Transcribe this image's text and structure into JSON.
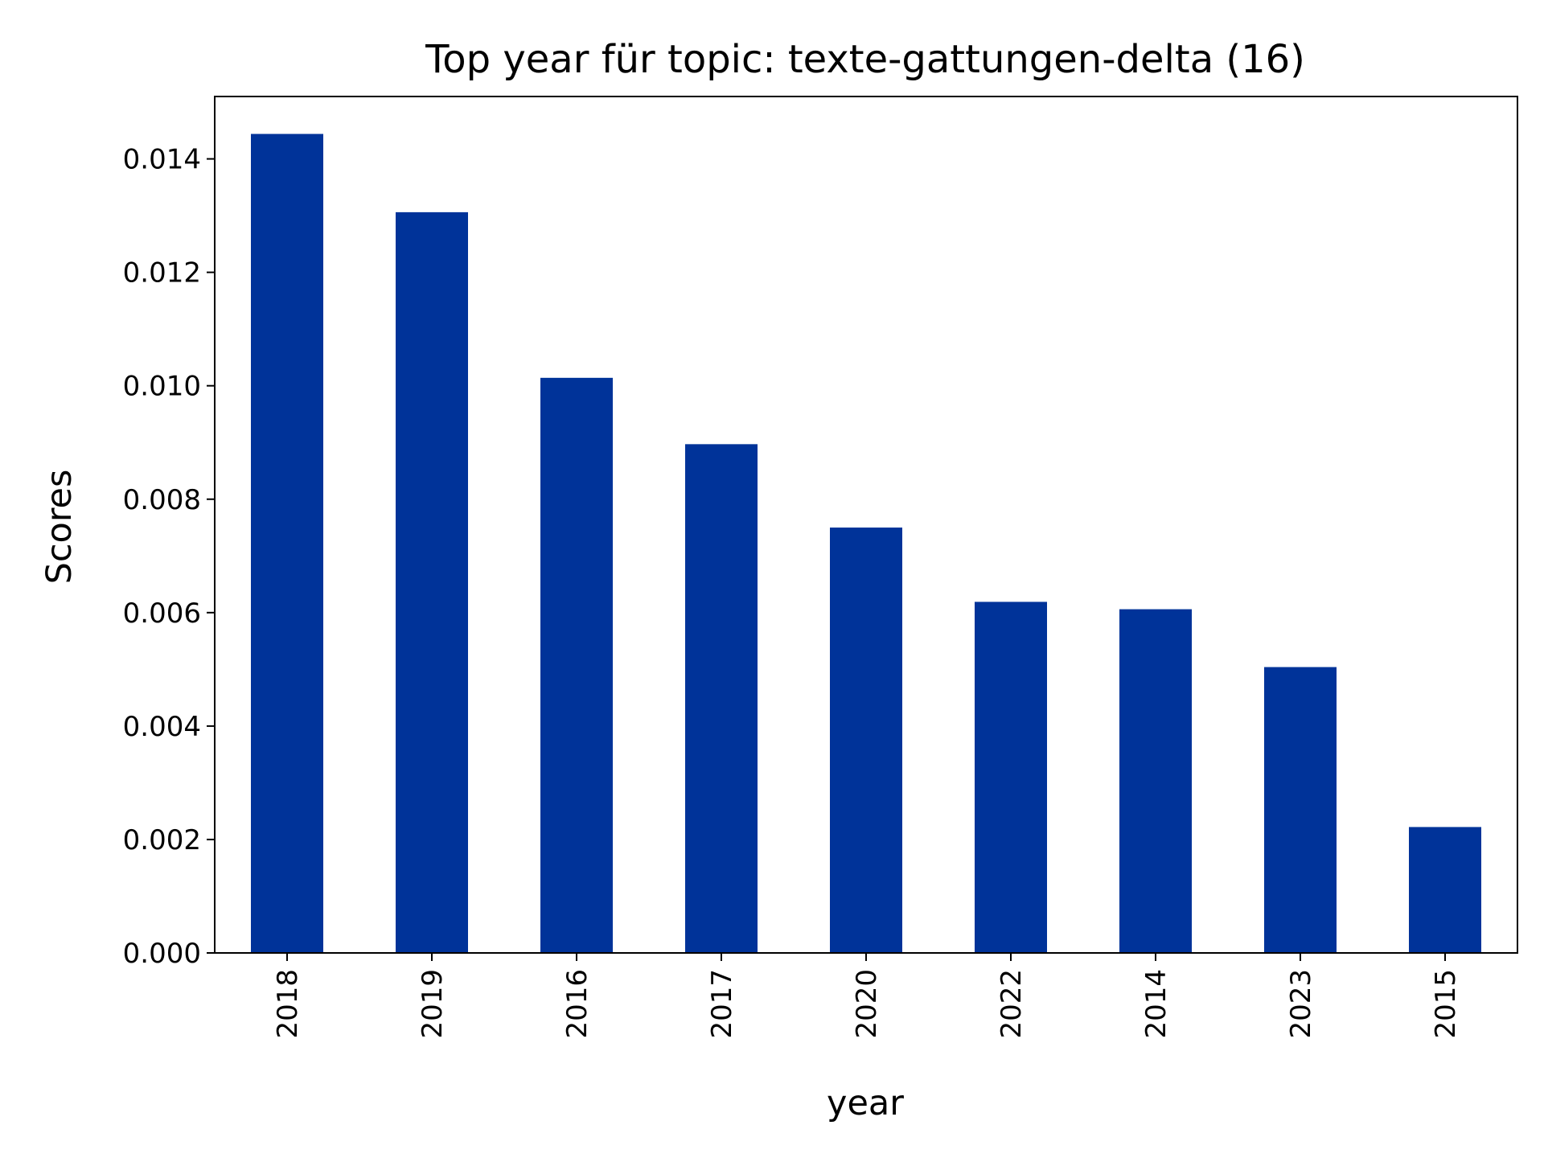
{
  "chart_data": {
    "type": "bar",
    "title": "Top year für topic: texte-gattungen-delta (16)",
    "xlabel": "year",
    "ylabel": "Scores",
    "categories": [
      "2018",
      "2019",
      "2016",
      "2017",
      "2020",
      "2022",
      "2014",
      "2023",
      "2015"
    ],
    "values": [
      0.01444,
      0.01306,
      0.01014,
      0.00897,
      0.0075,
      0.00619,
      0.00606,
      0.00504,
      0.00222
    ],
    "ylim": [
      0,
      0.0151
    ],
    "yticks": [
      "0.000",
      "0.002",
      "0.004",
      "0.006",
      "0.008",
      "0.010",
      "0.012",
      "0.014"
    ],
    "ytick_values": [
      0,
      0.002,
      0.004,
      0.006,
      0.008,
      0.01,
      0.012,
      0.014
    ],
    "bar_color": "#003399",
    "grid": false,
    "legend": "none"
  }
}
